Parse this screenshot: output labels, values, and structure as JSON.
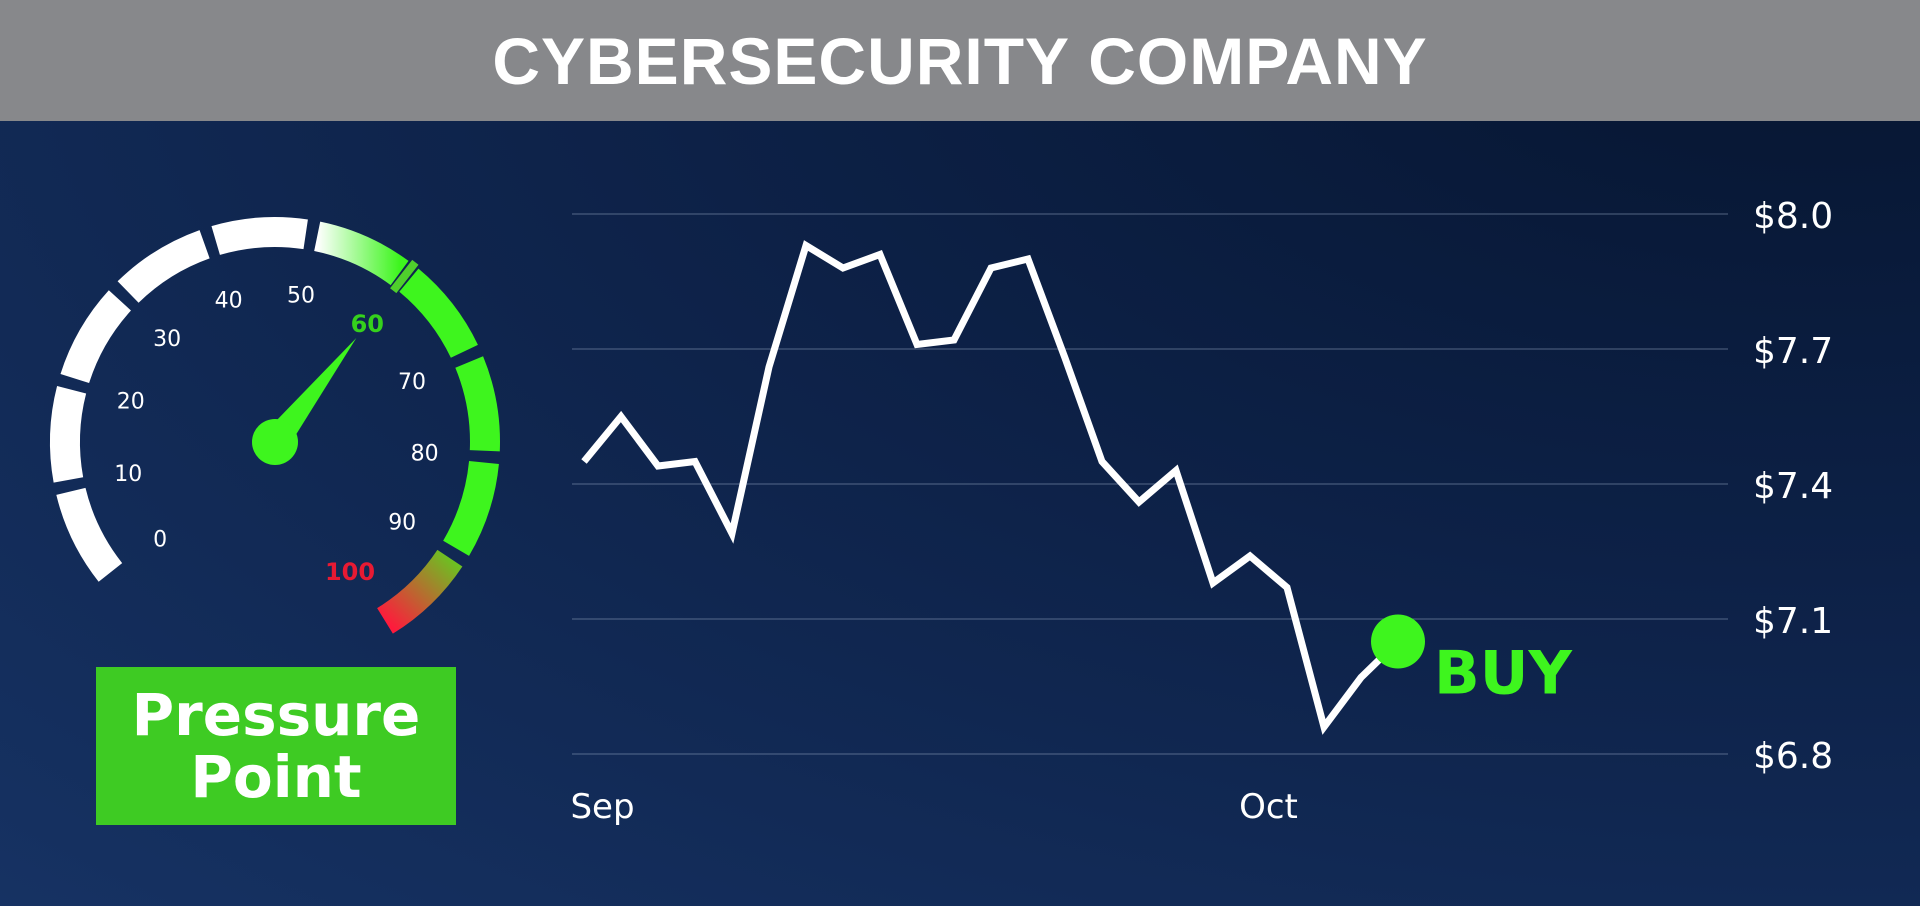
{
  "header": {
    "title": "CYBERSECURITY COMPANY"
  },
  "gauge": {
    "ticks": [
      "0",
      "10",
      "20",
      "30",
      "40",
      "50",
      "60",
      "70",
      "80",
      "90",
      "100"
    ],
    "value": 60,
    "min": 0,
    "max": 100,
    "highlight_label": "60",
    "max_label": "100",
    "colors": {
      "track": "#ffffff",
      "active": "#3ef51e",
      "danger": "#ff1a3c",
      "needle": "#3ef51e",
      "highlight_text": "#35d11c",
      "max_text": "#e81a33"
    }
  },
  "badge": {
    "line1": "Pressure",
    "line2": "Point",
    "color": "#3ecb23"
  },
  "signal": {
    "label": "BUY",
    "color": "#3ef51e"
  },
  "chart_data": {
    "type": "line",
    "title": "",
    "xlabel": "",
    "ylabel": "",
    "ylim": [
      6.8,
      8.0
    ],
    "yticks": [
      8.0,
      7.7,
      7.4,
      7.1,
      6.8
    ],
    "ytick_labels": [
      "$8.0",
      "$7.7",
      "$7.4",
      "$7.1",
      "$6.8"
    ],
    "xtick_labels": [
      "Sep",
      "Oct"
    ],
    "xticks": [
      0.5,
      18.5
    ],
    "grid": true,
    "series": [
      {
        "values": [
          7.45,
          7.55,
          7.44,
          7.45,
          7.29,
          7.66,
          7.93,
          7.88,
          7.91,
          7.71,
          7.72,
          7.88,
          7.9,
          7.68,
          7.45,
          7.36,
          7.43,
          7.18,
          7.24,
          7.17,
          6.86,
          6.97,
          7.05
        ]
      }
    ],
    "color": "#ffffff"
  }
}
